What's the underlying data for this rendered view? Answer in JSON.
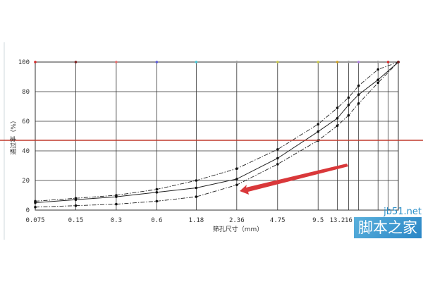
{
  "chart_data": {
    "type": "line",
    "x_ticks": [
      "0.075",
      "0.15",
      "0.3",
      "0.6",
      "1.18",
      "2.36",
      "4.75",
      "9.5",
      "13.2",
      "16"
    ],
    "x_tick_positions": [
      0.075,
      0.15,
      0.3,
      0.6,
      1.18,
      2.36,
      4.75,
      9.5,
      13.2,
      16
    ],
    "extra_gridlines_x": [
      19,
      26.5,
      31.5,
      37.5
    ],
    "y_ticks": [
      "0",
      "20",
      "40",
      "60",
      "80",
      "100"
    ],
    "ylim": [
      0,
      100
    ],
    "xlabel": "筛孔尺寸（mm）",
    "ylabel": "通过率（%）",
    "grid": true,
    "series": [
      {
        "style": "solid",
        "x": [
          0.075,
          0.15,
          0.3,
          0.6,
          1.18,
          2.36,
          4.75,
          9.5,
          13.2,
          16,
          19,
          26.5,
          37.5
        ],
        "y": [
          5,
          7,
          9,
          12,
          15,
          21,
          35,
          53,
          62,
          71,
          78,
          88,
          100
        ]
      },
      {
        "style": "dashdot",
        "x": [
          0.075,
          0.15,
          0.3,
          0.6,
          1.18,
          2.36,
          4.75,
          9.5,
          13.2,
          16,
          19,
          26.5,
          37.5
        ],
        "y": [
          6,
          8,
          10,
          14,
          20,
          28,
          41,
          58,
          69,
          76,
          84,
          95,
          100
        ]
      },
      {
        "style": "dashdot",
        "x": [
          0.075,
          0.15,
          0.3,
          0.6,
          1.18,
          2.36,
          4.75,
          9.5,
          13.2,
          16,
          19,
          26.5,
          37.5
        ],
        "y": [
          2,
          3,
          4,
          6,
          9,
          17,
          31,
          47,
          57,
          64,
          72,
          86,
          100
        ]
      }
    ],
    "annotations": {
      "horizontal_line_color": "#c0392b",
      "arrow_color": "#d9383a",
      "top_marker_colors": [
        "#d42a2a",
        "#7a1e1e",
        "#e36c6c",
        "#5a5ad8",
        "#44c8d8",
        "#9a9a9a",
        "#c8c84a",
        "#c8c84a",
        "#cfa020",
        "#9a9a9a",
        "#b080e0",
        "#9a9a9a"
      ]
    }
  },
  "watermark": {
    "site": "jb51.net",
    "name": "脚本之家"
  }
}
